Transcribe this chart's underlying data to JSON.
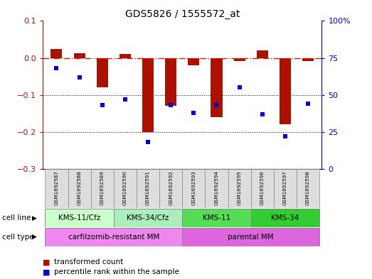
{
  "title": "GDS5826 / 1555572_at",
  "samples": [
    "GSM1692587",
    "GSM1692588",
    "GSM1692589",
    "GSM1692590",
    "GSM1692591",
    "GSM1692592",
    "GSM1692593",
    "GSM1692594",
    "GSM1692595",
    "GSM1692596",
    "GSM1692597",
    "GSM1692598"
  ],
  "transformed_count": [
    0.025,
    0.012,
    -0.08,
    0.01,
    -0.2,
    -0.13,
    -0.02,
    -0.16,
    -0.008,
    0.02,
    -0.18,
    -0.008
  ],
  "percentile_rank": [
    68,
    62,
    43,
    47,
    18,
    43,
    38,
    43,
    55,
    37,
    22,
    44
  ],
  "ylim_left": [
    -0.3,
    0.1
  ],
  "ylim_right": [
    0,
    100
  ],
  "yticks_left": [
    0.1,
    0.0,
    -0.1,
    -0.2,
    -0.3
  ],
  "yticks_right": [
    100,
    75,
    50,
    25,
    0
  ],
  "bar_color": "#aa1100",
  "scatter_color": "#0000cc",
  "dashed_line_color": "#cc2200",
  "grid_color": "#000000",
  "cell_line_groups": [
    {
      "label": "KMS-11/Cfz",
      "start": 0,
      "end": 3,
      "color": "#ccffcc"
    },
    {
      "label": "KMS-34/Cfz",
      "start": 3,
      "end": 6,
      "color": "#aaeebb"
    },
    {
      "label": "KMS-11",
      "start": 6,
      "end": 9,
      "color": "#55dd55"
    },
    {
      "label": "KMS-34",
      "start": 9,
      "end": 12,
      "color": "#33cc33"
    }
  ],
  "cell_type_groups": [
    {
      "label": "carfilzomib-resistant MM",
      "start": 0,
      "end": 6,
      "color": "#ee88ee"
    },
    {
      "label": "parental MM",
      "start": 6,
      "end": 12,
      "color": "#dd66dd"
    }
  ],
  "legend_items": [
    {
      "label": "transformed count",
      "color": "#aa1100"
    },
    {
      "label": "percentile rank within the sample",
      "color": "#0000cc"
    }
  ],
  "cell_line_label": "cell line",
  "cell_type_label": "cell type",
  "bg_color": "#ffffff"
}
